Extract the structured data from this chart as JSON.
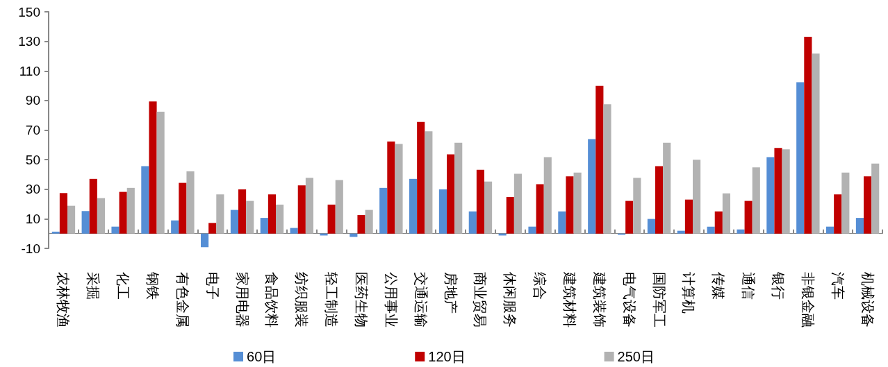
{
  "chart_data": {
    "type": "bar",
    "categories": [
      "农林牧渔",
      "采掘",
      "化工",
      "钢铁",
      "有色金属",
      "电子",
      "家用电器",
      "食品饮料",
      "纺织服装",
      "轻工制造",
      "医药生物",
      "公用事业",
      "交通运输",
      "房地产",
      "商业贸易",
      "休闲服务",
      "综合",
      "建筑材料",
      "建筑装饰",
      "电气设备",
      "国防军工",
      "计算机",
      "传媒",
      "通信",
      "银行",
      "非银金融",
      "汽车",
      "机械设备"
    ],
    "series": [
      {
        "name": "60日",
        "color": "#558ed5",
        "values": [
          1.3,
          15.2,
          4.7,
          45.6,
          8.9,
          -9.2,
          16,
          10.6,
          3.8,
          -1.3,
          -2.2,
          30.9,
          37,
          29.9,
          15,
          -1.3,
          4.7,
          15,
          63.9,
          -0.8,
          9.9,
          1.9,
          4.7,
          2.8,
          51.7,
          102.4,
          4.7,
          10.6
        ]
      },
      {
        "name": "120日",
        "color": "#c00000",
        "values": [
          27.4,
          37,
          28.2,
          89.4,
          34.3,
          7.2,
          29.9,
          26.5,
          32.6,
          19.6,
          12.5,
          62.3,
          75.5,
          53.6,
          43.1,
          24.7,
          33.4,
          38.7,
          99.9,
          22.1,
          45.6,
          23,
          15,
          22.1,
          57.9,
          133.1,
          26.5,
          38.7
        ]
      },
      {
        "name": "250日",
        "color": "#b2b2b2",
        "values": [
          18.8,
          24,
          30.9,
          82.4,
          42.1,
          26.5,
          22.1,
          19.6,
          37.7,
          36.2,
          16,
          60.6,
          69.2,
          61.4,
          35.2,
          40.4,
          51.7,
          41.3,
          87.5,
          37.7,
          61.4,
          50,
          27.2,
          44.8,
          57,
          121.7,
          41.3,
          47.4
        ]
      }
    ],
    "ylim": [
      -10,
      150
    ],
    "yticks": [
      -10,
      10,
      30,
      50,
      70,
      90,
      110,
      130,
      150
    ],
    "grid": false,
    "legend": "bottom"
  }
}
